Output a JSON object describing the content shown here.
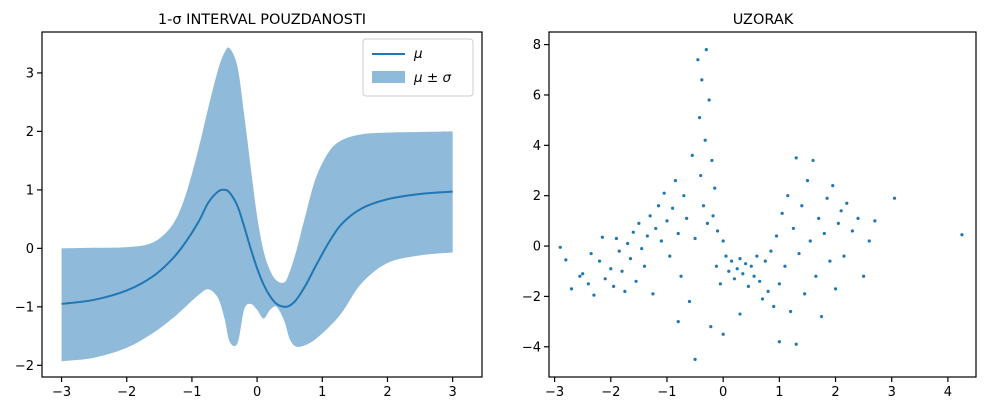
{
  "chart_data": [
    {
      "type": "line",
      "title": "1-σ INTERVAL POUZDANOSTI",
      "xlabel": "",
      "ylabel": "",
      "xlim": [
        -3.3,
        3.45
      ],
      "ylim": [
        -2.2,
        3.7
      ],
      "xticks": [
        -3,
        -2,
        -1,
        0,
        1,
        2,
        3
      ],
      "yticks": [
        -2,
        -1,
        0,
        1,
        2,
        3
      ],
      "xtick_labels": [
        "−3",
        "−2",
        "−1",
        "0",
        "1",
        "2",
        "3"
      ],
      "ytick_labels": [
        "−2",
        "−1",
        "0",
        "1",
        "2",
        "3"
      ],
      "legend": {
        "placement": "top-right",
        "entries": [
          {
            "label": "μ",
            "kind": "line"
          },
          {
            "label": "μ ± σ",
            "kind": "area"
          }
        ]
      },
      "colors": {
        "line": "#1f77b4",
        "band": "#8fbad9"
      },
      "series": {
        "x": [
          -3.0,
          -2.5,
          -2.0,
          -1.6,
          -1.3,
          -1.1,
          -0.9,
          -0.75,
          -0.6,
          -0.5,
          -0.42,
          -0.3,
          -0.2,
          -0.1,
          0.0,
          0.1,
          0.2,
          0.3,
          0.42,
          0.5,
          0.6,
          0.75,
          0.9,
          1.1,
          1.3,
          1.6,
          2.0,
          2.5,
          3.0
        ],
        "mean": [
          -0.95,
          -0.88,
          -0.72,
          -0.48,
          -0.18,
          0.1,
          0.45,
          0.78,
          0.97,
          1.0,
          0.95,
          0.72,
          0.38,
          0.0,
          -0.34,
          -0.62,
          -0.82,
          -0.95,
          -1.0,
          -0.98,
          -0.88,
          -0.62,
          -0.3,
          0.1,
          0.42,
          0.68,
          0.84,
          0.93,
          0.97
        ],
        "upper": [
          0.0,
          0.01,
          0.02,
          0.1,
          0.4,
          0.9,
          1.7,
          2.4,
          3.05,
          3.35,
          3.42,
          3.1,
          2.3,
          1.4,
          0.55,
          -0.05,
          -0.38,
          -0.55,
          -0.58,
          -0.4,
          -0.05,
          0.6,
          1.2,
          1.65,
          1.85,
          1.95,
          1.98,
          1.99,
          2.0
        ],
        "lower": [
          -1.93,
          -1.87,
          -1.7,
          -1.45,
          -1.2,
          -1.0,
          -0.8,
          -0.7,
          -0.85,
          -1.2,
          -1.6,
          -1.62,
          -1.05,
          -0.95,
          -1.05,
          -1.2,
          -1.05,
          -1.0,
          -1.25,
          -1.55,
          -1.68,
          -1.65,
          -1.55,
          -1.35,
          -1.1,
          -0.6,
          -0.25,
          -0.12,
          -0.07
        ]
      }
    },
    {
      "type": "scatter",
      "title": "UZORAK",
      "xlabel": "",
      "ylabel": "",
      "xlim": [
        -3.1,
        4.5
      ],
      "ylim": [
        -5.2,
        8.5
      ],
      "xticks": [
        -3,
        -2,
        -1,
        0,
        1,
        2,
        3,
        4
      ],
      "yticks": [
        -4,
        -2,
        0,
        2,
        4,
        6,
        8
      ],
      "xtick_labels": [
        "−3",
        "−2",
        "−1",
        "0",
        "1",
        "2",
        "3",
        "4"
      ],
      "ytick_labels": [
        "−4",
        "−2",
        "0",
        "2",
        "4",
        "6",
        "8"
      ],
      "colors": {
        "points": "#1f77b4"
      },
      "points": [
        [
          -2.9,
          -0.05
        ],
        [
          -2.8,
          -0.55
        ],
        [
          -2.7,
          -1.7
        ],
        [
          -2.55,
          -1.2
        ],
        [
          -2.5,
          -1.1
        ],
        [
          -2.4,
          -1.5
        ],
        [
          -2.35,
          -0.3
        ],
        [
          -2.3,
          -1.95
        ],
        [
          -2.2,
          -0.6
        ],
        [
          -2.15,
          0.35
        ],
        [
          -2.1,
          -1.3
        ],
        [
          -2.0,
          -0.9
        ],
        [
          -1.95,
          -1.6
        ],
        [
          -1.9,
          0.3
        ],
        [
          -1.85,
          -0.2
        ],
        [
          -1.8,
          -1.0
        ],
        [
          -1.75,
          -1.8
        ],
        [
          -1.7,
          0.1
        ],
        [
          -1.65,
          -0.5
        ],
        [
          -1.6,
          0.55
        ],
        [
          -1.55,
          -1.4
        ],
        [
          -1.5,
          0.9
        ],
        [
          -1.45,
          -0.1
        ],
        [
          -1.4,
          -0.8
        ],
        [
          -1.35,
          0.4
        ],
        [
          -1.3,
          1.2
        ],
        [
          -1.25,
          -1.9
        ],
        [
          -1.2,
          0.7
        ],
        [
          -1.15,
          1.6
        ],
        [
          -1.1,
          0.2
        ],
        [
          -1.05,
          2.1
        ],
        [
          -1.0,
          1.0
        ],
        [
          -0.95,
          -0.4
        ],
        [
          -0.9,
          1.5
        ],
        [
          -0.85,
          2.6
        ],
        [
          -0.8,
          0.5
        ],
        [
          -0.75,
          -1.2
        ],
        [
          -0.7,
          2.0
        ],
        [
          -0.65,
          1.1
        ],
        [
          -0.6,
          -2.2
        ],
        [
          -0.55,
          3.6
        ],
        [
          -0.5,
          0.3
        ],
        [
          -0.45,
          7.4
        ],
        [
          -0.42,
          5.1
        ],
        [
          -0.4,
          2.8
        ],
        [
          -0.38,
          6.6
        ],
        [
          -0.35,
          1.6
        ],
        [
          -0.32,
          4.2
        ],
        [
          -0.3,
          7.8
        ],
        [
          -0.28,
          0.9
        ],
        [
          -0.25,
          5.8
        ],
        [
          -0.22,
          -3.2
        ],
        [
          -0.2,
          3.4
        ],
        [
          -0.18,
          1.2
        ],
        [
          -0.15,
          2.3
        ],
        [
          -0.12,
          -0.8
        ],
        [
          -0.1,
          0.6
        ],
        [
          -0.05,
          -1.5
        ],
        [
          0.0,
          0.2
        ],
        [
          0.05,
          -0.4
        ],
        [
          0.1,
          -1.0
        ],
        [
          0.15,
          -0.6
        ],
        [
          0.2,
          -1.3
        ],
        [
          0.25,
          -0.9
        ],
        [
          0.3,
          -0.5
        ],
        [
          0.35,
          -1.1
        ],
        [
          0.4,
          -0.7
        ],
        [
          0.45,
          -1.6
        ],
        [
          0.5,
          -0.8
        ],
        [
          0.55,
          -1.2
        ],
        [
          0.6,
          -0.4
        ],
        [
          0.65,
          -1.4
        ],
        [
          0.7,
          -2.1
        ],
        [
          0.75,
          -0.6
        ],
        [
          0.8,
          -1.8
        ],
        [
          0.85,
          -0.2
        ],
        [
          0.9,
          -2.4
        ],
        [
          0.95,
          0.4
        ],
        [
          1.0,
          -1.5
        ],
        [
          1.05,
          1.3
        ],
        [
          1.1,
          -0.8
        ],
        [
          1.15,
          2.0
        ],
        [
          1.2,
          -2.6
        ],
        [
          1.25,
          0.7
        ],
        [
          1.3,
          3.5
        ],
        [
          1.35,
          -0.3
        ],
        [
          1.4,
          1.6
        ],
        [
          1.45,
          -1.9
        ],
        [
          1.5,
          2.6
        ],
        [
          1.55,
          0.2
        ],
        [
          1.6,
          3.4
        ],
        [
          1.65,
          -1.2
        ],
        [
          1.7,
          1.1
        ],
        [
          1.75,
          -2.8
        ],
        [
          1.8,
          0.5
        ],
        [
          1.85,
          1.9
        ],
        [
          1.9,
          -0.6
        ],
        [
          1.95,
          2.4
        ],
        [
          2.0,
          -1.7
        ],
        [
          2.05,
          0.9
        ],
        [
          2.1,
          1.4
        ],
        [
          2.15,
          -0.4
        ],
        [
          2.2,
          1.7
        ],
        [
          2.3,
          0.6
        ],
        [
          2.4,
          1.1
        ],
        [
          2.5,
          -1.2
        ],
        [
          2.6,
          0.2
        ],
        [
          2.7,
          1.0
        ],
        [
          3.05,
          1.9
        ],
        [
          4.25,
          0.45
        ],
        [
          -0.5,
          -4.5
        ],
        [
          0.0,
          -3.5
        ],
        [
          1.0,
          -3.8
        ],
        [
          1.3,
          -3.9
        ],
        [
          -0.8,
          -3.0
        ],
        [
          0.3,
          -2.7
        ]
      ]
    }
  ]
}
